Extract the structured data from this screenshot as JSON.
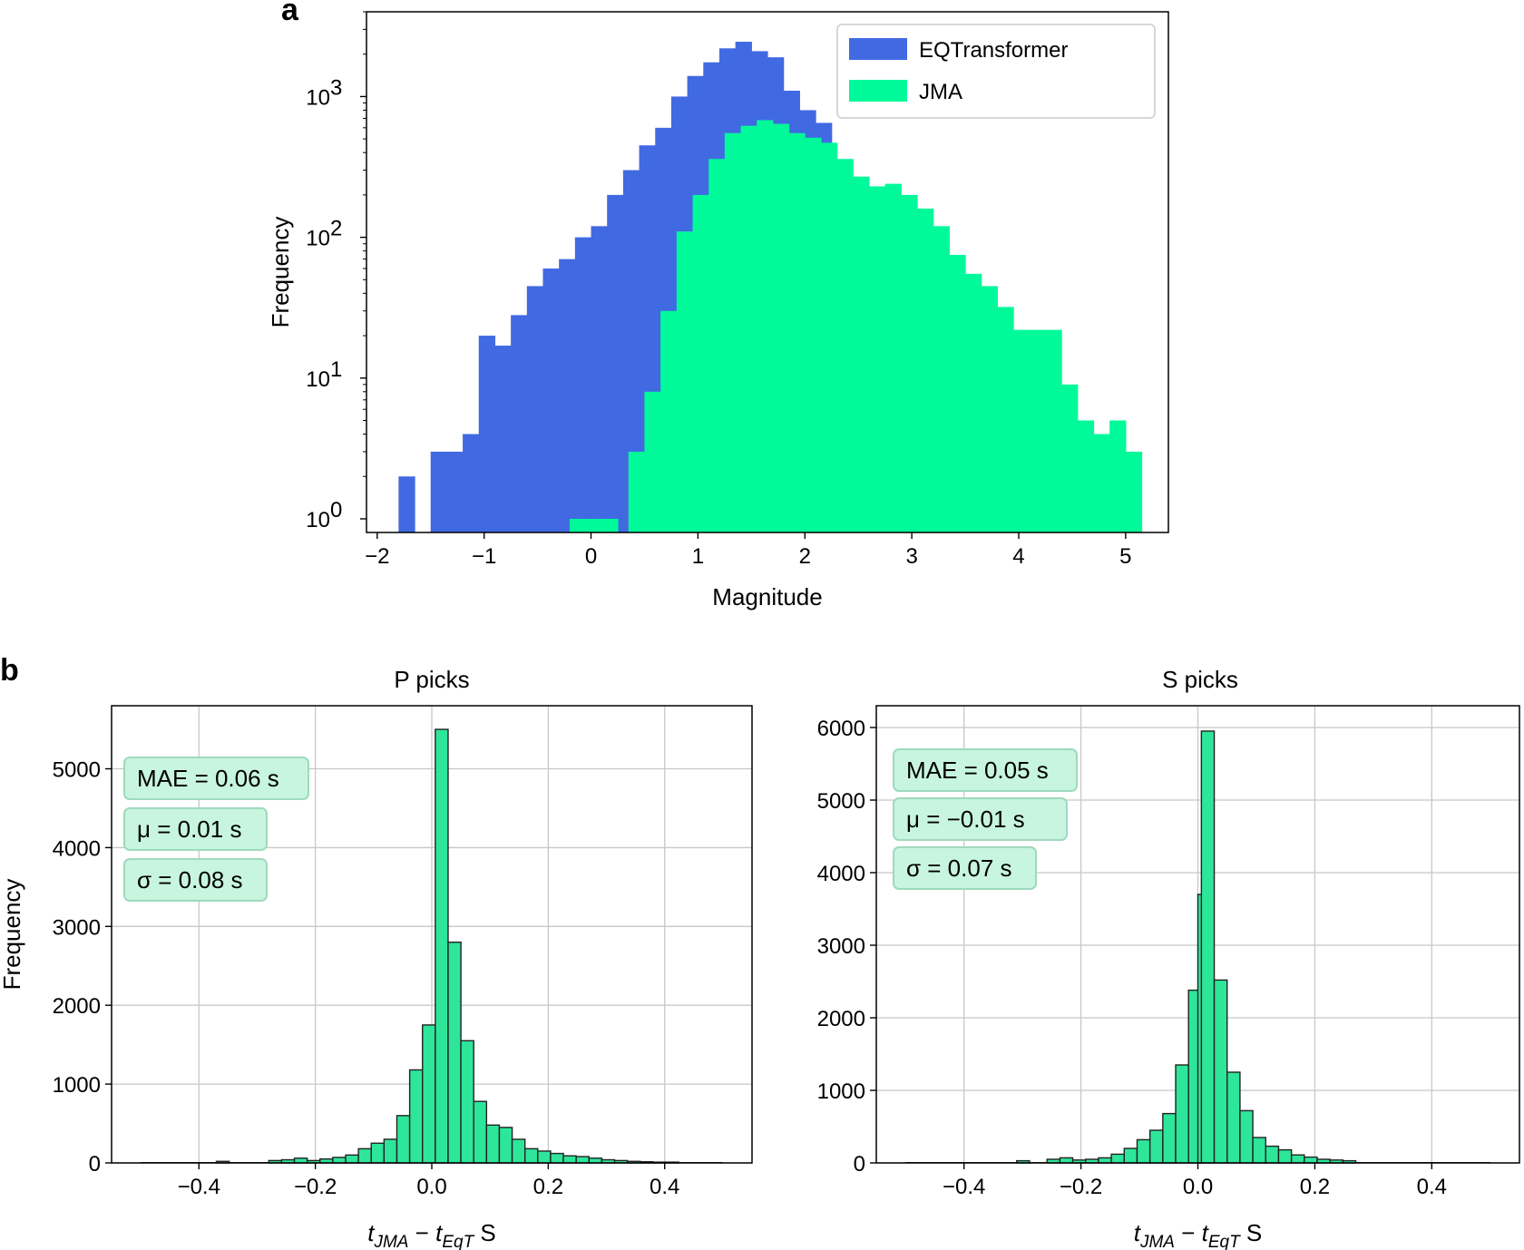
{
  "chart_data": [
    {
      "panel": "a",
      "type": "bar",
      "subtype": "histogram",
      "yscale": "log",
      "xlabel": "Magnitude",
      "ylabel": "Frequency",
      "xlim": [
        -2.1,
        5.4
      ],
      "ylim": [
        0.8,
        4000
      ],
      "xticks": [
        -2,
        -1,
        0,
        1,
        2,
        3,
        4,
        5
      ],
      "xtick_labels": [
        "−2",
        "−1",
        "0",
        "1",
        "2",
        "3",
        "4",
        "5"
      ],
      "yticks": [
        1,
        10,
        100,
        1000
      ],
      "ytick_labels": [
        "10",
        "10",
        "10",
        "10"
      ],
      "ytick_exponents": [
        "0",
        "1",
        "2",
        "3"
      ],
      "bin_width": 0.15,
      "legend_position": "top-right",
      "series": [
        {
          "name": "EQTransformer",
          "color": "#4169e1",
          "bins": [
            [
              -1.8,
              2
            ],
            [
              -1.5,
              3
            ],
            [
              -1.35,
              3
            ],
            [
              -1.2,
              4
            ],
            [
              -1.05,
              20
            ],
            [
              -0.9,
              17
            ],
            [
              -0.75,
              28
            ],
            [
              -0.6,
              45
            ],
            [
              -0.45,
              60
            ],
            [
              -0.3,
              70
            ],
            [
              -0.15,
              100
            ],
            [
              0.0,
              120
            ],
            [
              0.15,
              200
            ],
            [
              0.3,
              300
            ],
            [
              0.45,
              450
            ],
            [
              0.6,
              600
            ],
            [
              0.75,
              1000
            ],
            [
              0.9,
              1400
            ],
            [
              1.05,
              1750
            ],
            [
              1.2,
              2200
            ],
            [
              1.35,
              2450
            ],
            [
              1.5,
              2100
            ],
            [
              1.65,
              1900
            ],
            [
              1.8,
              1100
            ],
            [
              1.95,
              800
            ],
            [
              2.1,
              650
            ],
            [
              2.25,
              350
            ]
          ]
        },
        {
          "name": "JMA",
          "color": "#00fa9a",
          "bins": [
            [
              -0.2,
              1
            ],
            [
              -0.05,
              1
            ],
            [
              0.1,
              1
            ],
            [
              0.35,
              3
            ],
            [
              0.5,
              8
            ],
            [
              0.65,
              30
            ],
            [
              0.8,
              110
            ],
            [
              0.95,
              200
            ],
            [
              1.1,
              360
            ],
            [
              1.25,
              550
            ],
            [
              1.4,
              620
            ],
            [
              1.55,
              680
            ],
            [
              1.7,
              640
            ],
            [
              1.85,
              550
            ],
            [
              2.0,
              510
            ],
            [
              2.15,
              470
            ],
            [
              2.3,
              360
            ],
            [
              2.45,
              270
            ],
            [
              2.6,
              230
            ],
            [
              2.75,
              240
            ],
            [
              2.9,
              200
            ],
            [
              3.05,
              160
            ],
            [
              3.2,
              120
            ],
            [
              3.35,
              75
            ],
            [
              3.5,
              55
            ],
            [
              3.65,
              45
            ],
            [
              3.8,
              32
            ],
            [
              3.95,
              22
            ],
            [
              4.1,
              22
            ],
            [
              4.25,
              22
            ],
            [
              4.4,
              9
            ],
            [
              4.55,
              5
            ],
            [
              4.7,
              4
            ],
            [
              4.85,
              5
            ],
            [
              5.0,
              3
            ]
          ]
        }
      ]
    },
    {
      "panel": "b",
      "type": "bar",
      "subtype": "histogram",
      "title": "P picks",
      "xlabel_parts": [
        "t",
        "JMA",
        " − ",
        "t",
        "EqT",
        " S"
      ],
      "ylabel": "Frequency",
      "xlim": [
        -0.55,
        0.55
      ],
      "ylim": [
        0,
        5800
      ],
      "xticks": [
        -0.4,
        -0.2,
        0.0,
        0.2,
        0.4
      ],
      "xtick_labels": [
        "−0.4",
        "−0.2",
        "0.0",
        "0.2",
        "0.4"
      ],
      "yticks": [
        0,
        1000,
        2000,
        3000,
        4000,
        5000
      ],
      "ytick_labels": [
        "0",
        "1000",
        "2000",
        "3000",
        "4000",
        "5000"
      ],
      "grid": true,
      "bar_color": "#2ee69a",
      "bin_width": 0.022,
      "bins": [
        [
          -0.37,
          20
        ],
        [
          -0.28,
          30
        ],
        [
          -0.258,
          40
        ],
        [
          -0.236,
          60
        ],
        [
          -0.214,
          30
        ],
        [
          -0.192,
          50
        ],
        [
          -0.17,
          70
        ],
        [
          -0.148,
          100
        ],
        [
          -0.126,
          180
        ],
        [
          -0.104,
          250
        ],
        [
          -0.082,
          300
        ],
        [
          -0.06,
          600
        ],
        [
          -0.038,
          1180
        ],
        [
          -0.016,
          1750
        ],
        [
          0.006,
          5500
        ],
        [
          0.028,
          2800
        ],
        [
          0.05,
          1550
        ],
        [
          0.072,
          780
        ],
        [
          0.094,
          480
        ],
        [
          0.116,
          450
        ],
        [
          0.138,
          300
        ],
        [
          0.16,
          180
        ],
        [
          0.182,
          150
        ],
        [
          0.204,
          120
        ],
        [
          0.226,
          90
        ],
        [
          0.248,
          80
        ],
        [
          0.27,
          60
        ],
        [
          0.292,
          40
        ],
        [
          0.314,
          30
        ],
        [
          0.336,
          20
        ],
        [
          0.358,
          15
        ],
        [
          0.38,
          10
        ],
        [
          0.402,
          10
        ]
      ],
      "stats": [
        "MAE = 0.06 s",
        "μ = 0.01 s",
        "σ = 0.08 s"
      ]
    },
    {
      "panel": "b",
      "type": "bar",
      "subtype": "histogram",
      "title": "S picks",
      "xlabel_parts": [
        "t",
        "JMA",
        " − ",
        "t",
        "EqT",
        " S"
      ],
      "ylabel": "",
      "xlim": [
        -0.55,
        0.55
      ],
      "ylim": [
        0,
        6300
      ],
      "xticks": [
        -0.4,
        -0.2,
        0.0,
        0.2,
        0.4
      ],
      "xtick_labels": [
        "−0.4",
        "−0.2",
        "0.0",
        "0.2",
        "0.4"
      ],
      "yticks": [
        0,
        1000,
        2000,
        3000,
        4000,
        5000,
        6000
      ],
      "ytick_labels": [
        "0",
        "1000",
        "2000",
        "3000",
        "4000",
        "5000",
        "6000"
      ],
      "grid": true,
      "bar_color": "#2ee69a",
      "bin_width": 0.022,
      "bins": [
        [
          -0.31,
          30
        ],
        [
          -0.258,
          50
        ],
        [
          -0.236,
          70
        ],
        [
          -0.214,
          40
        ],
        [
          -0.192,
          50
        ],
        [
          -0.17,
          70
        ],
        [
          -0.148,
          120
        ],
        [
          -0.126,
          200
        ],
        [
          -0.104,
          320
        ],
        [
          -0.082,
          450
        ],
        [
          -0.06,
          680
        ],
        [
          -0.038,
          1350
        ],
        [
          -0.016,
          2380
        ],
        [
          0.0,
          3700
        ],
        [
          0.006,
          5950
        ],
        [
          0.028,
          2520
        ],
        [
          0.05,
          1250
        ],
        [
          0.072,
          720
        ],
        [
          0.094,
          350
        ],
        [
          0.116,
          230
        ],
        [
          0.138,
          180
        ],
        [
          0.16,
          110
        ],
        [
          0.182,
          80
        ],
        [
          0.204,
          50
        ],
        [
          0.226,
          40
        ],
        [
          0.248,
          30
        ]
      ],
      "stats": [
        "MAE = 0.05 s",
        "μ = −0.01 s",
        "σ = 0.07 s"
      ]
    }
  ],
  "labels": {
    "panel_a": "a",
    "panel_b": "b"
  }
}
